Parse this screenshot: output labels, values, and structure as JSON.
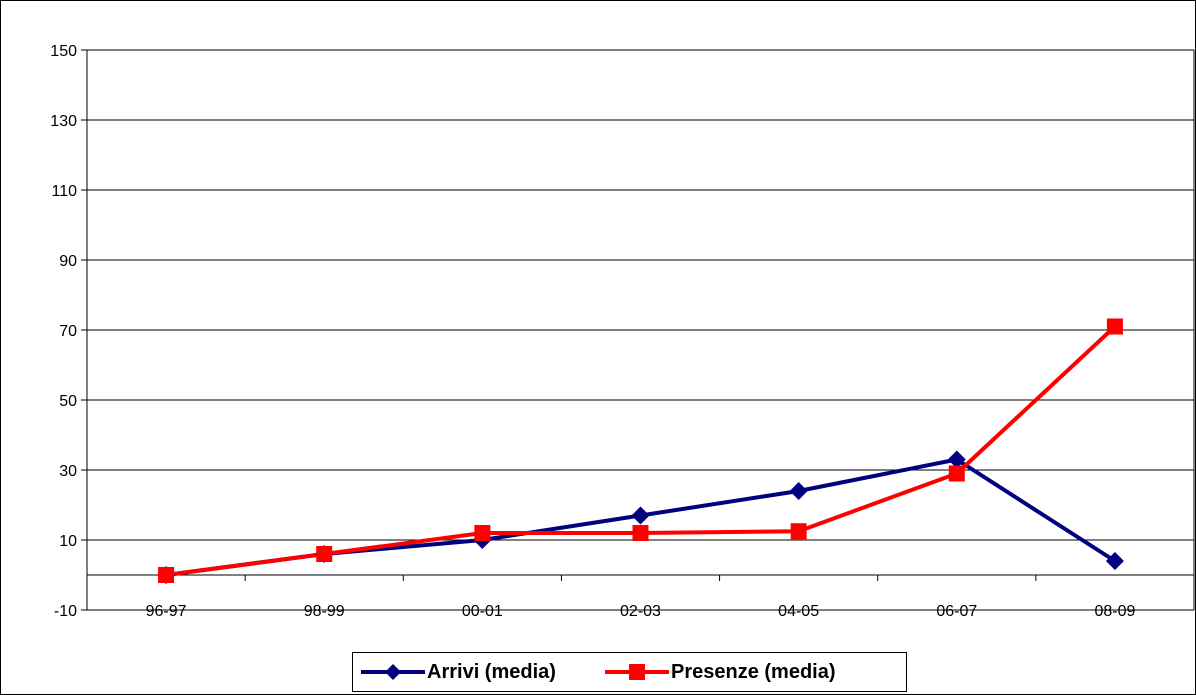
{
  "chart_data": {
    "type": "line",
    "title": "",
    "xlabel": "",
    "ylabel": "",
    "categories": [
      "96-97",
      "98-99",
      "00-01",
      "02-03",
      "04-05",
      "06-07",
      "08-09"
    ],
    "ylim": [
      -10,
      150
    ],
    "yticks": [
      -10,
      10,
      30,
      50,
      70,
      90,
      110,
      130,
      150
    ],
    "grid": true,
    "legend_position": "bottom",
    "series": [
      {
        "name": "Arrivi (media)",
        "color": "#000080",
        "marker": "diamond",
        "values": [
          0,
          6,
          10,
          17,
          24,
          33,
          4
        ]
      },
      {
        "name": "Presenze (media)",
        "color": "#FF0000",
        "marker": "square",
        "values": [
          0,
          6,
          12,
          12,
          12.5,
          29,
          71
        ]
      }
    ]
  }
}
